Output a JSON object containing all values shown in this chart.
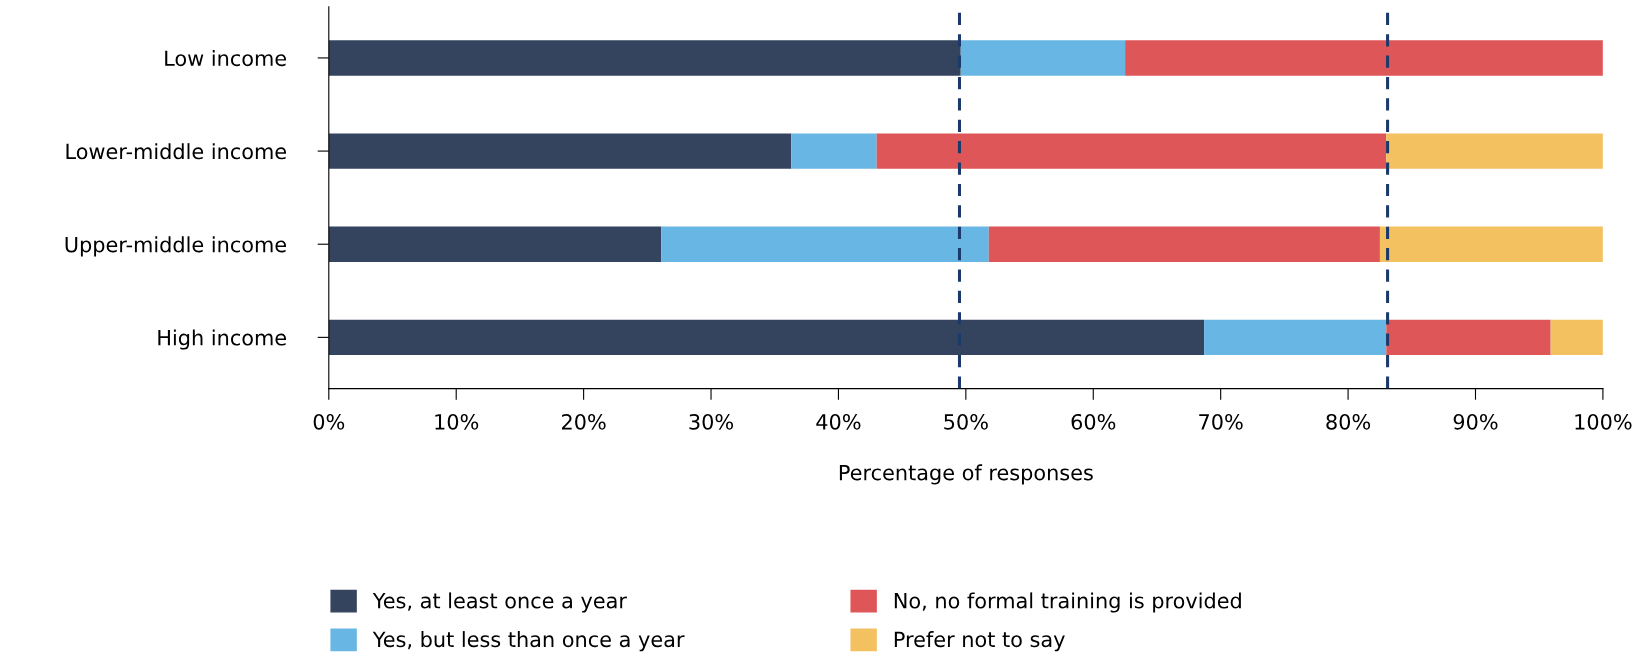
{
  "chart_data": {
    "type": "bar",
    "orientation": "horizontal",
    "stacked": true,
    "categories": [
      "Low income",
      "Lower-middle income",
      "Upper-middle income",
      "High income"
    ],
    "xlabel": "Percentage of responses",
    "xlim": [
      0,
      100
    ],
    "xticks": [
      {
        "value": 0,
        "label": "0%"
      },
      {
        "value": 10,
        "label": "10%"
      },
      {
        "value": 20,
        "label": "20%"
      },
      {
        "value": 30,
        "label": "30%"
      },
      {
        "value": 40,
        "label": "40%"
      },
      {
        "value": 50,
        "label": "50%"
      },
      {
        "value": 60,
        "label": "60%"
      },
      {
        "value": 70,
        "label": "70%"
      },
      {
        "value": 80,
        "label": "80%"
      },
      {
        "value": 90,
        "label": "90%"
      },
      {
        "value": 100,
        "label": "100%"
      }
    ],
    "series": [
      {
        "name": "Yes, at least once a year",
        "color": "#34445e",
        "values": [
          49.6,
          36.3,
          26.1,
          68.7
        ]
      },
      {
        "name": "Yes, but less than once a year",
        "color": "#68b6e3",
        "values": [
          12.9,
          6.7,
          25.7,
          14.3
        ]
      },
      {
        "name": "No, no formal training is provided",
        "color": "#de5657",
        "values": [
          37.5,
          40.0,
          30.7,
          12.9
        ]
      },
      {
        "name": "Prefer not to say",
        "color": "#f3c160",
        "values": [
          null,
          17.0,
          17.5,
          4.1
        ]
      }
    ],
    "ref_lines": [
      {
        "axis": "x",
        "value": 49.5,
        "color": "#1b3a6b",
        "line_style": "dashed"
      },
      {
        "axis": "x",
        "value": 83.1,
        "color": "#1b3a6b",
        "line_style": "dashed"
      }
    ],
    "legend": "bottom",
    "grid": false
  }
}
